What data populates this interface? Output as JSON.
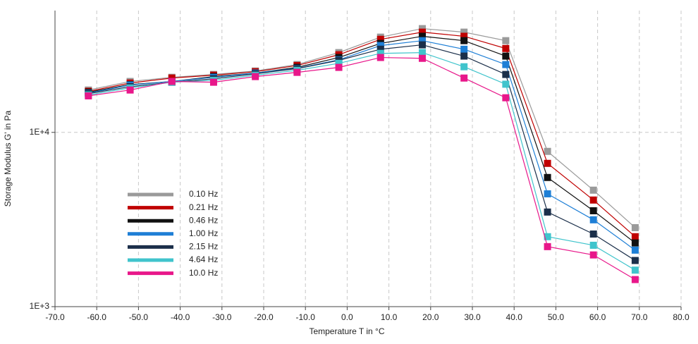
{
  "chart_data": {
    "type": "line",
    "xlabel": "Temperature  T  in °C",
    "ylabel": "Storage Modulus G'  in Pa",
    "x": [
      -62,
      -52,
      -42,
      -32,
      -22,
      -12,
      -2,
      8,
      18,
      28,
      38,
      48,
      59,
      69
    ],
    "series": [
      {
        "name": "0.10 Hz",
        "color": "#9a9a9a",
        "values": [
          17500,
          19600,
          20700,
          21500,
          22500,
          24500,
          28700,
          35200,
          39400,
          37600,
          33600,
          7780,
          4660,
          2840
        ]
      },
      {
        "name": "0.21 Hz",
        "color": "#c00000",
        "values": [
          17200,
          19200,
          20500,
          21300,
          22300,
          24200,
          27900,
          34200,
          37600,
          35600,
          30300,
          6640,
          4090,
          2520
        ]
      },
      {
        "name": "0.46 Hz",
        "color": "#111111",
        "values": [
          17000,
          18800,
          19600,
          20900,
          21900,
          23600,
          26900,
          32400,
          35600,
          33600,
          27400,
          5510,
          3550,
          2320
        ]
      },
      {
        "name": "1.00 Hz",
        "color": "#1e7fd6",
        "values": [
          16800,
          18700,
          19600,
          20700,
          21900,
          23300,
          26100,
          31500,
          33600,
          30000,
          24500,
          4440,
          3150,
          2110
        ]
      },
      {
        "name": "2.15 Hz",
        "color": "#1b2f4a",
        "values": [
          16700,
          18300,
          19400,
          20300,
          21700,
          23200,
          25900,
          30000,
          31800,
          27400,
          21500,
          3490,
          2610,
          1840
        ]
      },
      {
        "name": "4.64 Hz",
        "color": "#40c4cc",
        "values": [
          16400,
          18000,
          19400,
          19900,
          21300,
          22700,
          24900,
          28400,
          28700,
          23800,
          18900,
          2520,
          2250,
          1620
        ]
      },
      {
        "name": "10.0 Hz",
        "color": "#e8178a",
        "values": [
          16200,
          17500,
          19600,
          19400,
          20900,
          22100,
          23600,
          26900,
          26600,
          20500,
          15800,
          2210,
          1980,
          1430
        ]
      }
    ],
    "xlim": [
      -70,
      80
    ],
    "xticks": [
      {
        "value": -70,
        "label": "-70.0"
      },
      {
        "value": -60,
        "label": "-60.0"
      },
      {
        "value": -50,
        "label": "-50.0"
      },
      {
        "value": -40,
        "label": "-40.0"
      },
      {
        "value": -30,
        "label": "-30.0"
      },
      {
        "value": -20,
        "label": "-20.0"
      },
      {
        "value": -10,
        "label": "-10.0"
      },
      {
        "value": 0,
        "label": "0.0"
      },
      {
        "value": 10,
        "label": "10.0"
      },
      {
        "value": 20,
        "label": "20.0"
      },
      {
        "value": 30,
        "label": "30.0"
      },
      {
        "value": 40,
        "label": "40.0"
      },
      {
        "value": 50,
        "label": "50.0"
      },
      {
        "value": 60,
        "label": "60.0"
      },
      {
        "value": 70,
        "label": "70.0"
      },
      {
        "value": 80,
        "label": "80.0"
      }
    ],
    "ylim": [
      1000,
      50000
    ],
    "yticks": [
      {
        "value": 1000,
        "label": "1E+3"
      },
      {
        "value": 10000,
        "label": "1E+4"
      }
    ],
    "log_y": true,
    "grid": true
  }
}
